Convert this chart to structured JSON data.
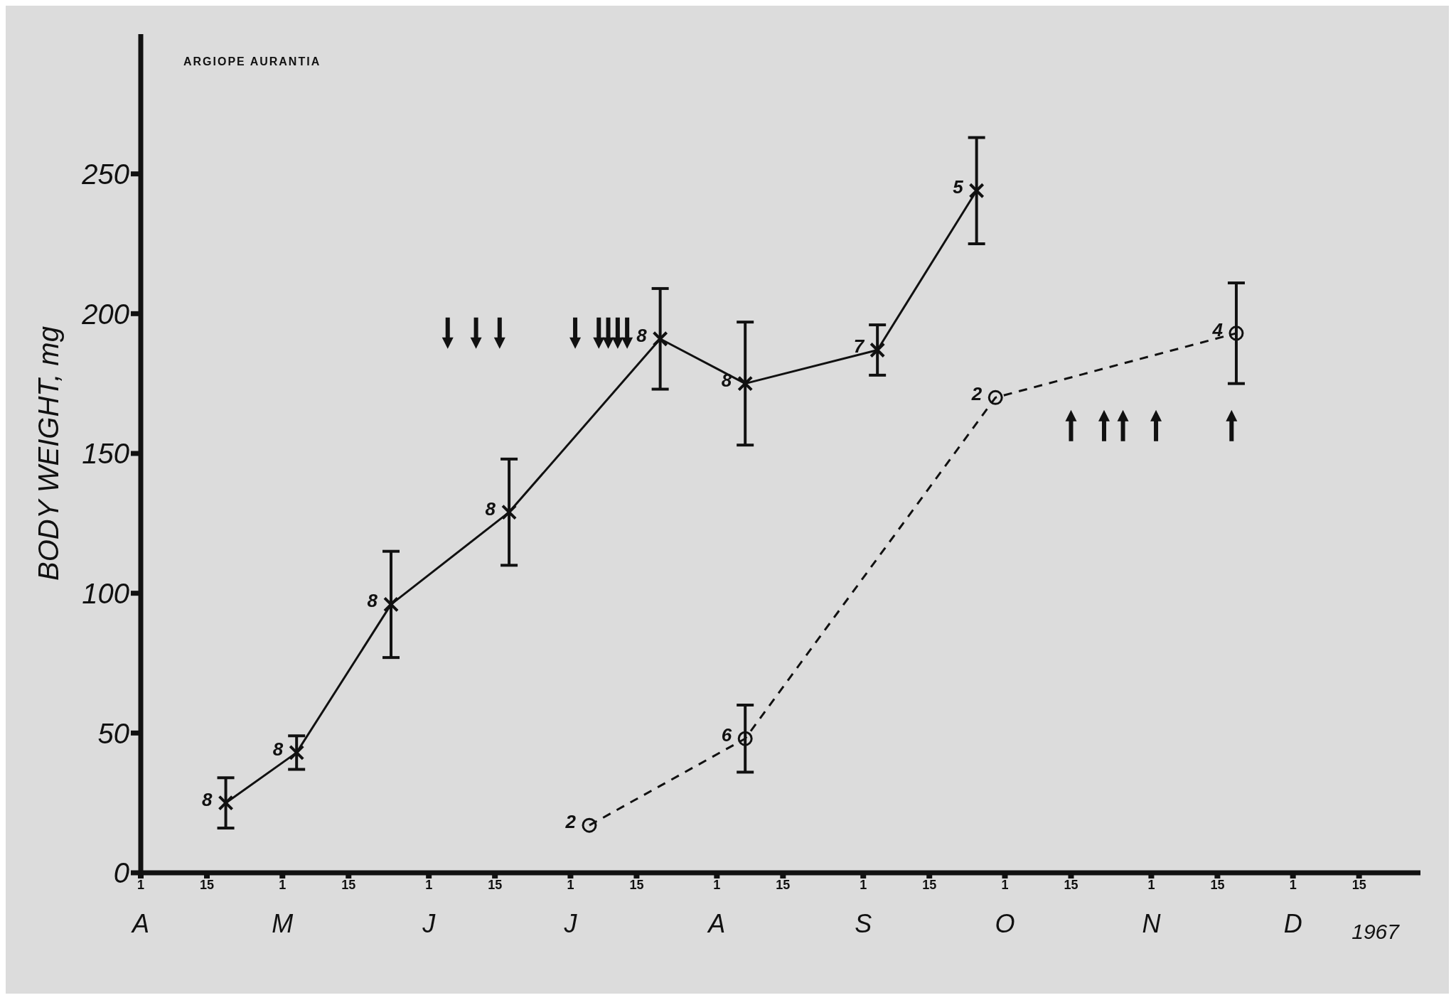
{
  "chart_data": {
    "type": "line",
    "title": "ARGIOPE AURANTIA",
    "ylabel": "BODY WEIGHT, mg",
    "xlabel": "1967",
    "xlim": [
      "1967-04-01",
      "1967-12-28"
    ],
    "xticks": [
      {
        "value": "1967-04-01",
        "label": "1"
      },
      {
        "value": "1967-04-15",
        "label": "15"
      },
      {
        "value": "1967-05-01",
        "label": "1"
      },
      {
        "value": "1967-05-15",
        "label": "15"
      },
      {
        "value": "1967-06-01",
        "label": "1"
      },
      {
        "value": "1967-06-15",
        "label": "15"
      },
      {
        "value": "1967-07-01",
        "label": "1"
      },
      {
        "value": "1967-07-15",
        "label": "15"
      },
      {
        "value": "1967-08-01",
        "label": "1"
      },
      {
        "value": "1967-08-15",
        "label": "15"
      },
      {
        "value": "1967-09-01",
        "label": "1"
      },
      {
        "value": "1967-09-15",
        "label": "15"
      },
      {
        "value": "1967-10-01",
        "label": "1"
      },
      {
        "value": "1967-10-15",
        "label": "15"
      },
      {
        "value": "1967-11-01",
        "label": "1"
      },
      {
        "value": "1967-11-15",
        "label": "15"
      },
      {
        "value": "1967-12-01",
        "label": "1"
      },
      {
        "value": "1967-12-15",
        "label": "15"
      }
    ],
    "ylim": [
      0,
      300
    ],
    "yticks": [
      0,
      50,
      100,
      150,
      200,
      250
    ],
    "series": [
      {
        "color": "#111111",
        "marker": "cross",
        "line_style": "solid",
        "x": [
          "1967-04-19",
          "1967-05-04",
          "1967-05-24",
          "1967-06-18",
          "1967-07-20",
          "1967-08-07",
          "1967-09-04",
          "1967-09-25"
        ],
        "values": [
          25,
          43,
          96,
          129,
          191,
          175,
          187,
          244
        ],
        "errors": [
          9,
          6,
          19,
          19,
          18,
          22,
          9,
          19
        ]
      },
      {
        "color": "#111111",
        "marker": "circle",
        "line_style": "dashed",
        "x": [
          "1967-07-05",
          "1967-08-07",
          "1967-09-29",
          "1967-11-19"
        ],
        "values": [
          17,
          48,
          170,
          193
        ],
        "errors": [
          null,
          12,
          null,
          18
        ]
      }
    ],
    "annotations": [
      "A",
      "M",
      "J",
      "J",
      "A",
      "S",
      "O",
      "N",
      "D",
      {
        "text": "8",
        "x": "1967-04-19",
        "y": 25
      },
      {
        "text": "8",
        "x": "1967-05-04",
        "y": 43
      },
      {
        "text": "8",
        "x": "1967-05-24",
        "y": 96
      },
      {
        "text": "8",
        "x": "1967-06-18",
        "y": 129
      },
      {
        "text": "8",
        "x": "1967-07-20",
        "y": 191
      },
      {
        "text": "8",
        "x": "1967-08-07",
        "y": 175
      },
      {
        "text": "7",
        "x": "1967-09-04",
        "y": 187
      },
      {
        "text": "5",
        "x": "1967-09-25",
        "y": 244
      },
      {
        "text": "2",
        "x": "1967-07-05",
        "y": 17
      },
      {
        "text": "6",
        "x": "1967-08-07",
        "y": 48
      },
      {
        "text": "2",
        "x": "1967-09-29",
        "y": 170
      },
      {
        "text": "4",
        "x": "1967-11-19",
        "y": 193
      }
    ]
  }
}
